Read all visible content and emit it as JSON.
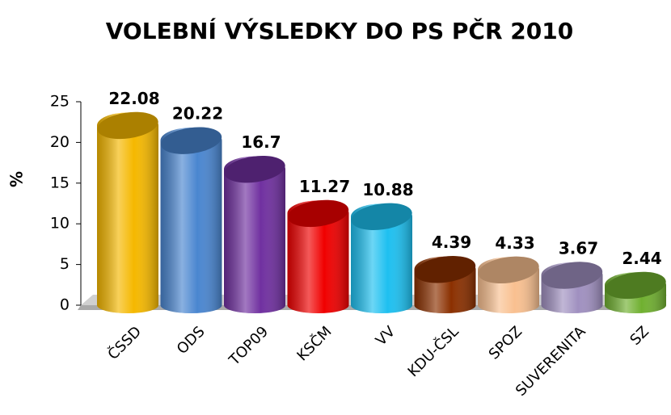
{
  "chart_data": {
    "type": "bar",
    "title": "VOLEBNÍ VÝSLEDKY DO PS PČR 2010",
    "y_label": "%",
    "categories": [
      "ČSSD",
      "ODS",
      "TOP09",
      "KSČM",
      "VV",
      "KDU-ČSL",
      "SPOZ",
      "SUVERENITA",
      "SZ"
    ],
    "values": [
      22.08,
      20.22,
      16.7,
      11.27,
      10.88,
      4.39,
      4.33,
      3.67,
      2.44
    ],
    "colors": [
      "#f5b800",
      "#4a86d0",
      "#7030a0",
      "#f00000",
      "#1ec0f0",
      "#8b3000",
      "#f9c090",
      "#a090c0",
      "#70b030"
    ],
    "ylim": [
      0,
      25
    ],
    "yticks": [
      0,
      5,
      10,
      15,
      20,
      25
    ]
  }
}
